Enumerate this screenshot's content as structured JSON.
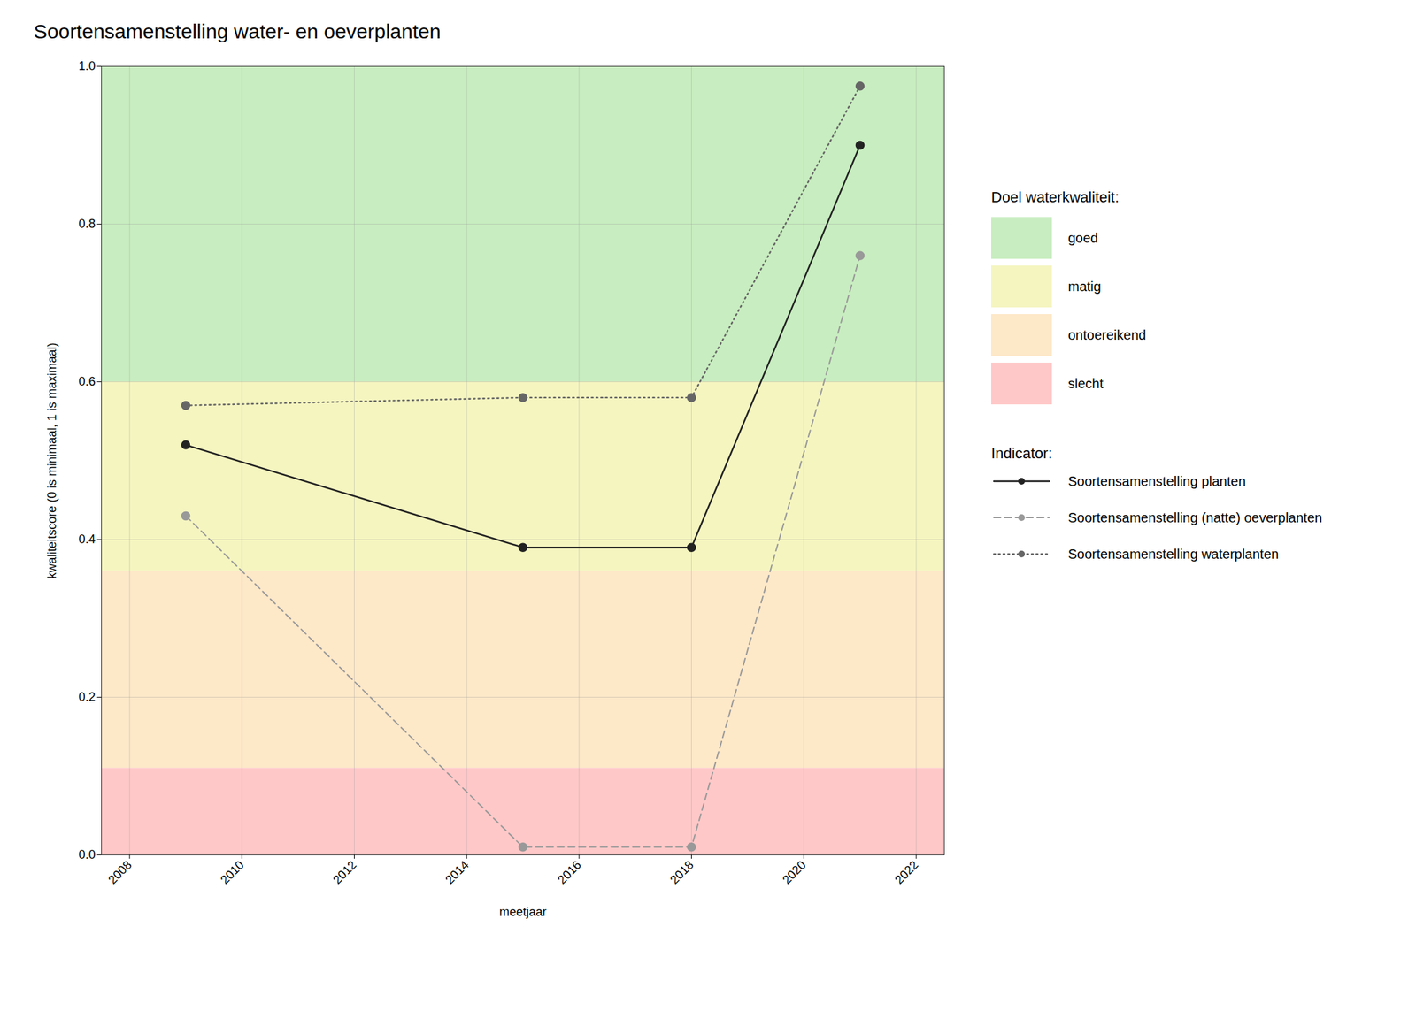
{
  "chart_data": {
    "type": "line",
    "title": "Soortensamenstelling water- en oeverplanten",
    "xlabel": "meetjaar",
    "ylabel": "kwaliteitscore (0 is minimaal, 1 is maximaal)",
    "x": [
      2009,
      2015,
      2018,
      2021
    ],
    "series": [
      {
        "name": "Soortensamenstelling planten",
        "color": "#222222",
        "line_style": "solid",
        "marker": "o",
        "values": [
          0.52,
          0.39,
          0.39,
          0.9
        ]
      },
      {
        "name": "Soortensamenstelling (natte) oeverplanten",
        "color": "#999999",
        "line_style": "dashed",
        "marker": "o",
        "values": [
          0.43,
          0.01,
          0.01,
          0.76
        ]
      },
      {
        "name": "Soortensamenstelling waterplanten",
        "color": "#666666",
        "line_style": "dotted",
        "marker": "o",
        "values": [
          0.57,
          0.58,
          0.58,
          0.975
        ]
      }
    ],
    "xlim": [
      2007.5,
      2022.5
    ],
    "ylim": [
      0.0,
      1.0
    ],
    "xticks": [
      2008,
      2010,
      2012,
      2014,
      2016,
      2018,
      2020,
      2022
    ],
    "yticks": [
      {
        "value": 0.0,
        "label": "0.0"
      },
      0.2,
      0.4,
      0.6,
      0.8,
      {
        "value": 1.0,
        "label": "1.0"
      }
    ],
    "grid": true,
    "legend": "right",
    "bands_title": "Doel waterkwaliteit:",
    "bands": [
      {
        "name": "goed",
        "color": "#c8edc0",
        "ymin": 0.6,
        "ymax": 1.0
      },
      {
        "name": "matig",
        "color": "#f5f5c0",
        "ymin": 0.36,
        "ymax": 0.6
      },
      {
        "name": "ontoereikend",
        "color": "#fde8c8",
        "ymin": 0.11,
        "ymax": 0.36
      },
      {
        "name": "slecht",
        "color": "#ffc8c8",
        "ymin": 0.0,
        "ymax": 0.11
      }
    ],
    "legend_title": "Indicator:"
  }
}
